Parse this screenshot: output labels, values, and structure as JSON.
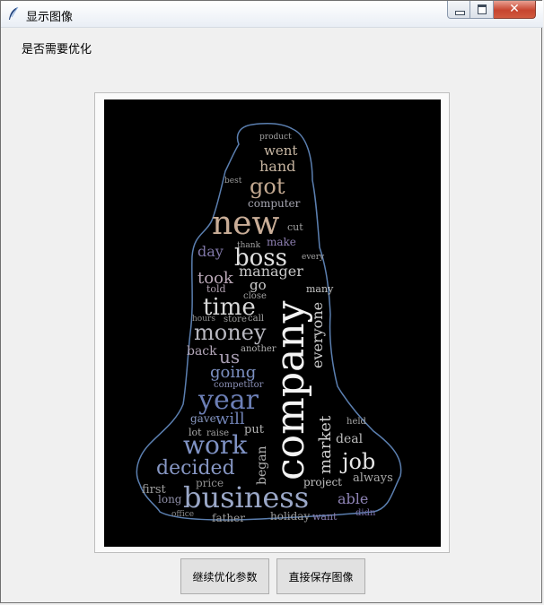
{
  "window": {
    "title": "显示图像",
    "close_glyph": "✕"
  },
  "main": {
    "prompt": "是否需要优化"
  },
  "buttons": {
    "continue_optimize": "继续优化参数",
    "save_directly": "直接保存图像"
  },
  "colors": {
    "silhouette_outline": "#5b7fb0",
    "canvas_background": "#000000"
  },
  "wordcloud": {
    "words": [
      {
        "text": "company",
        "color": "#f4f4f4"
      },
      {
        "text": "business",
        "color": "#9aa7c7"
      },
      {
        "text": "new",
        "color": "#c9ad97"
      },
      {
        "text": "year",
        "color": "#6c7fb6"
      },
      {
        "text": "work",
        "color": "#7f92c4"
      },
      {
        "text": "decided",
        "color": "#8696c3"
      },
      {
        "text": "boss",
        "color": "#e0e0e0"
      },
      {
        "text": "money",
        "color": "#b8b8c0"
      },
      {
        "text": "time",
        "color": "#d8d8d8"
      },
      {
        "text": "got",
        "color": "#c2a890"
      },
      {
        "text": "job",
        "color": "#e6e6e6"
      },
      {
        "text": "market",
        "color": "#d0d0d0"
      },
      {
        "text": "everyone",
        "color": "#cfcfcf"
      },
      {
        "text": "took",
        "color": "#b9a7b6"
      },
      {
        "text": "manager",
        "color": "#c8c8c8"
      },
      {
        "text": "going",
        "color": "#7b8fc0"
      },
      {
        "text": "hand",
        "color": "#c4b29e"
      },
      {
        "text": "went",
        "color": "#c9b8a4"
      },
      {
        "text": "computer",
        "color": "#a5a5b0"
      },
      {
        "text": "day",
        "color": "#8077a8"
      },
      {
        "text": "us",
        "color": "#a89db2"
      },
      {
        "text": "began",
        "color": "#b2b2b2"
      },
      {
        "text": "able",
        "color": "#8e83b5"
      },
      {
        "text": "project",
        "color": "#c0c0c0"
      },
      {
        "text": "always",
        "color": "#a8a8a8"
      },
      {
        "text": "deal",
        "color": "#bdbdbd"
      },
      {
        "text": "first",
        "color": "#9e9e9e"
      },
      {
        "text": "long",
        "color": "#8f8fa8"
      },
      {
        "text": "price",
        "color": "#909090"
      },
      {
        "text": "father",
        "color": "#9c9c9c"
      },
      {
        "text": "holiday",
        "color": "#a0a0a0"
      },
      {
        "text": "want",
        "color": "#8a7fb0"
      },
      {
        "text": "didn",
        "color": "#7a6fa8"
      },
      {
        "text": "office",
        "color": "#8a8a8a"
      },
      {
        "text": "will",
        "color": "#7082b5"
      },
      {
        "text": "gave",
        "color": "#8898c0"
      },
      {
        "text": "put",
        "color": "#b5b5b5"
      },
      {
        "text": "back",
        "color": "#b4a7b9"
      },
      {
        "text": "make",
        "color": "#8d7fb1"
      },
      {
        "text": "go",
        "color": "#cfcfcf"
      },
      {
        "text": "many",
        "color": "#c5c5c5"
      },
      {
        "text": "told",
        "color": "#b0a0b0"
      },
      {
        "text": "thank",
        "color": "#a0a0a0"
      },
      {
        "text": "every",
        "color": "#a5a5a5"
      },
      {
        "text": "close",
        "color": "#a0a0a0"
      },
      {
        "text": "hours",
        "color": "#8e8e8e"
      },
      {
        "text": "store",
        "color": "#9a9a9a"
      },
      {
        "text": "call",
        "color": "#a8a8a8"
      },
      {
        "text": "another",
        "color": "#b0b0b0"
      },
      {
        "text": "competitor",
        "color": "#8a8fb5"
      },
      {
        "text": "raise",
        "color": "#a0a0a0"
      },
      {
        "text": "lot",
        "color": "#b0b0b0"
      },
      {
        "text": "held",
        "color": "#a5a5a5"
      },
      {
        "text": "cut",
        "color": "#a0a0a0"
      },
      {
        "text": "product",
        "color": "#a0a0a0"
      },
      {
        "text": "best",
        "color": "#9a9a9a"
      }
    ]
  }
}
